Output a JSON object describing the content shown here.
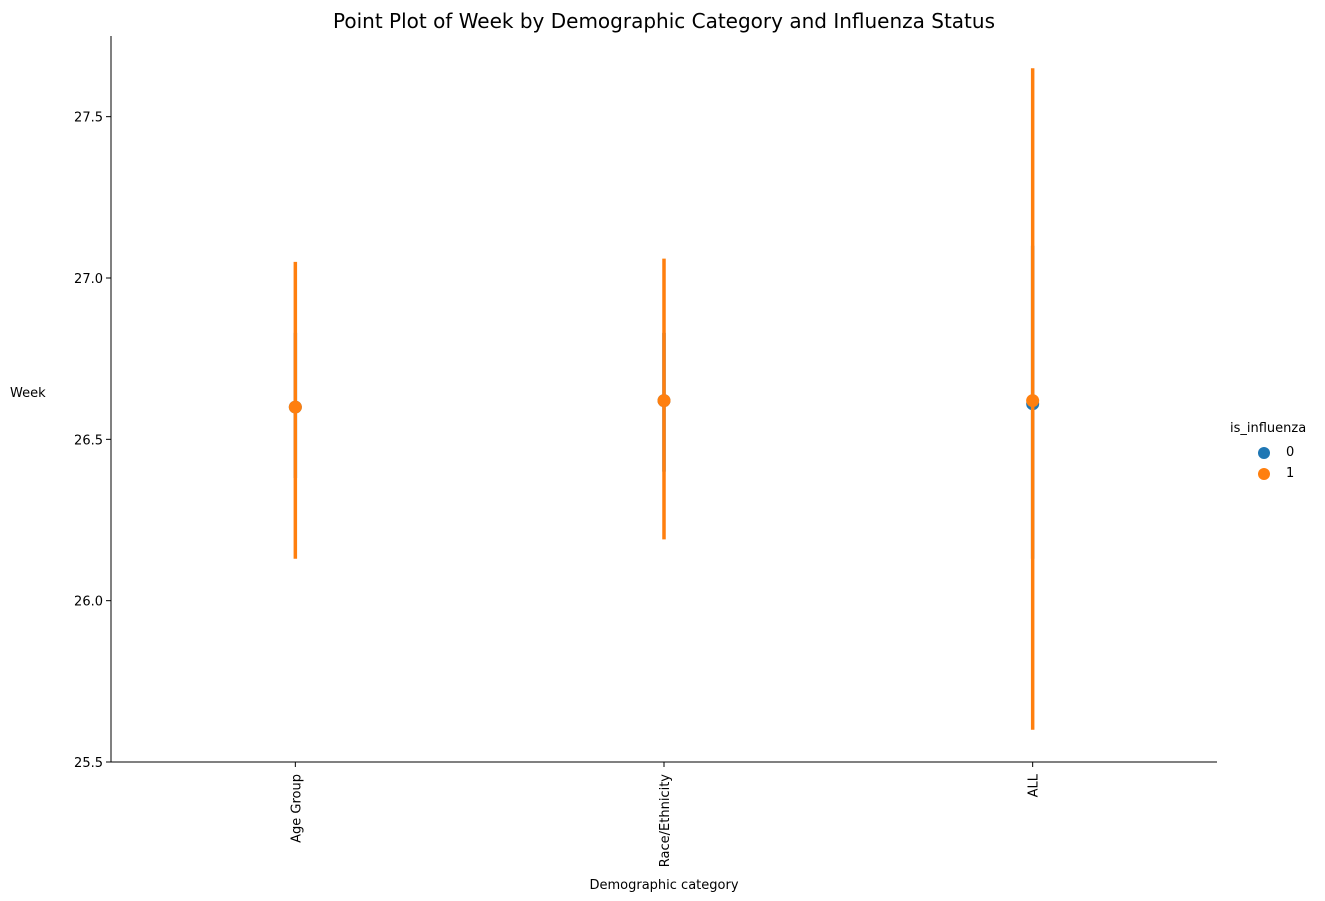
{
  "chart_data": {
    "type": "scatter",
    "title": "Point Plot of Week by Demographic Category and Influenza Status",
    "xlabel": "Demographic category",
    "ylabel": "Week",
    "categories": [
      "Age Group",
      "Race/Ethnicity",
      "ALL"
    ],
    "ylim": [
      25.5,
      27.75
    ],
    "yticks": [
      "25.5",
      "26.0",
      "26.5",
      "27.0",
      "27.5"
    ],
    "legend_title": "is_influenza",
    "legend_position": "right",
    "grid": false,
    "series": [
      {
        "name": "0",
        "color": "#1f77b4",
        "values": [
          26.6,
          26.62,
          26.61
        ],
        "ci_low": [
          26.38,
          26.4,
          26.13
        ],
        "ci_high": [
          26.83,
          26.83,
          27.1
        ]
      },
      {
        "name": "1",
        "color": "#ff7f0e",
        "values": [
          26.6,
          26.62,
          26.62
        ],
        "ci_low": [
          26.13,
          26.19,
          25.6
        ],
        "ci_high": [
          27.05,
          27.06,
          27.65
        ]
      }
    ]
  }
}
